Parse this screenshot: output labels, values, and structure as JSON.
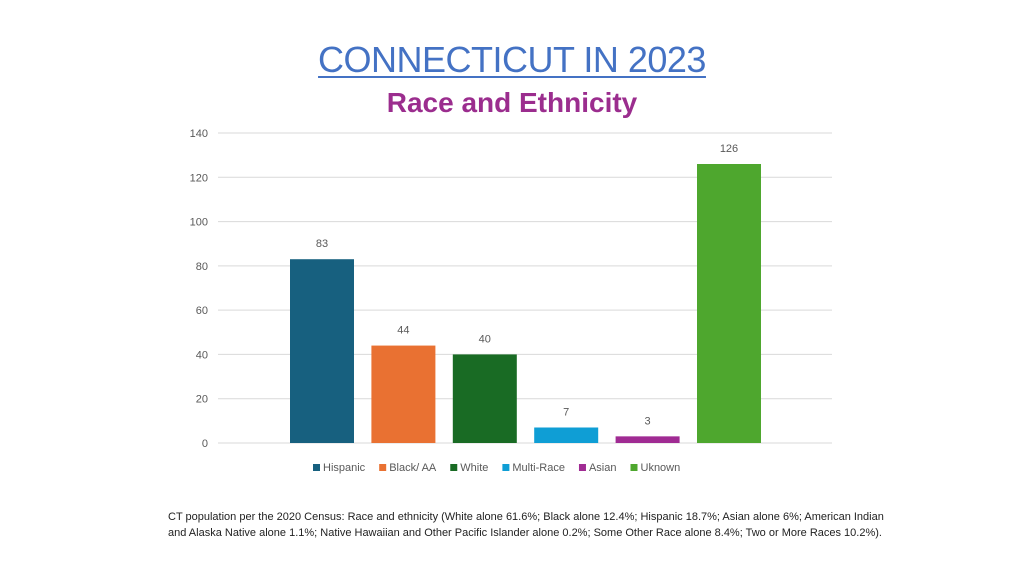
{
  "slide": {
    "title": "CONNECTICUT IN 2023",
    "subtitle": "Race and Ethnicity",
    "footnote": "CT population per the 2020 Census: Race and ethnicity (White alone 61.6%; Black alone 12.4%; Hispanic 18.7%; Asian alone 6%; American Indian and Alaska Native alone 1.1%; Native Hawaiian and Other Pacific Islander alone 0.2%; Some Other Race alone 8.4%; Two or More Races 10.2%)."
  },
  "colors": {
    "title": "#4472c4",
    "subtitle": "#9b2d8e",
    "grid": "#d9d9d9",
    "tick_text": "#595959"
  },
  "chart_data": {
    "type": "bar",
    "title": "",
    "xlabel": "",
    "ylabel": "",
    "ylim": [
      0,
      140
    ],
    "yticks": [
      0,
      20,
      40,
      60,
      80,
      100,
      120,
      140
    ],
    "grid": true,
    "legend": "bottom",
    "categories": [
      "Hispanic",
      "Black/ AA",
      "White",
      "Multi-Race",
      "Asian",
      "Uknown"
    ],
    "values": [
      83,
      44,
      40,
      7,
      3,
      126
    ],
    "colors": [
      "#17607f",
      "#e97132",
      "#196b24",
      "#0f9ed5",
      "#a02b93",
      "#4ea72e"
    ],
    "data_labels": [
      "83",
      "44",
      "40",
      "7",
      "3",
      "126"
    ]
  }
}
